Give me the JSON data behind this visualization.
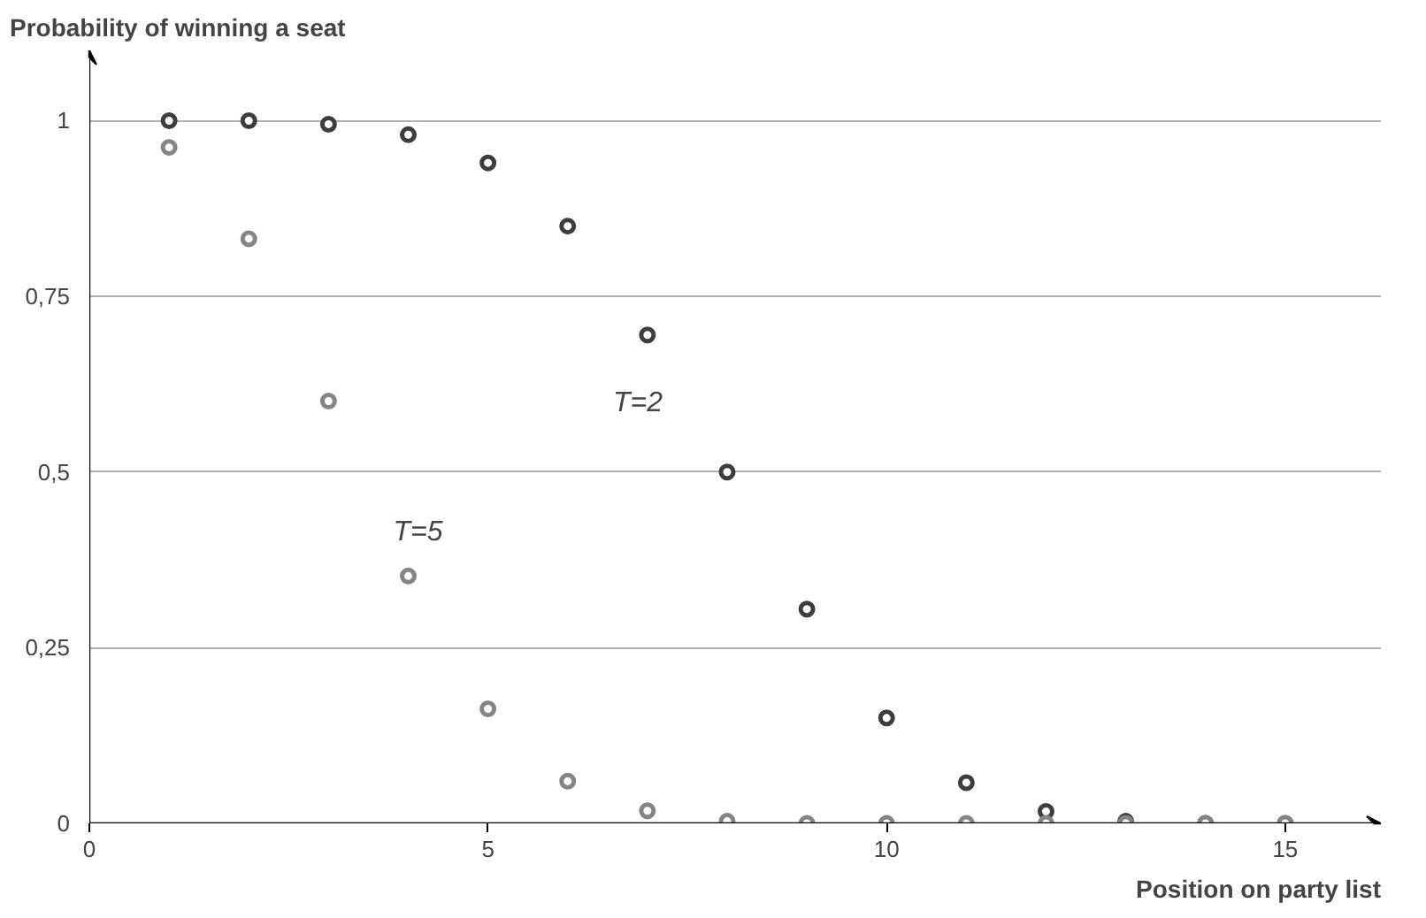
{
  "chart_data": {
    "type": "scatter",
    "xlabel": "Position on party list",
    "ylabel": "Probability of winning a seat",
    "x": [
      1,
      2,
      3,
      4,
      5,
      6,
      7,
      8,
      9,
      10,
      11,
      12,
      13,
      14,
      15
    ],
    "series": [
      {
        "name": "T=2",
        "color": "#3d3d3d",
        "values": [
          1.0,
          1.0,
          0.995,
          0.98,
          0.94,
          0.85,
          0.695,
          0.5,
          0.305,
          0.15,
          0.058,
          0.017,
          0.003,
          0.0,
          0.0
        ]
      },
      {
        "name": "T=5",
        "color": "#858585",
        "values": [
          0.962,
          0.832,
          0.601,
          0.352,
          0.163,
          0.06,
          0.018,
          0.003,
          0.0,
          0.0,
          0.0,
          0.0,
          0.0,
          0.0,
          0.0
        ]
      }
    ],
    "xlim": [
      0,
      16.2
    ],
    "ylim": [
      0,
      1.1
    ],
    "xticks": [
      0,
      5,
      10,
      15
    ],
    "yticks": [
      0,
      {
        "value": 0.25,
        "label": "0,25"
      },
      {
        "value": 0.5,
        "label": "0,5"
      },
      {
        "value": 0.75,
        "label": "0,75"
      },
      1
    ],
    "grid": "y",
    "marker": "circle"
  }
}
